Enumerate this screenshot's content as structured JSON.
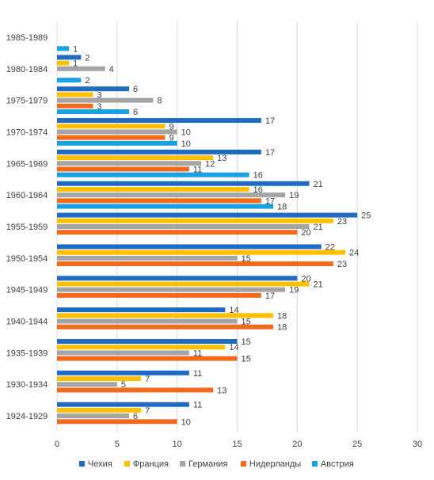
{
  "chart_data": {
    "type": "bar",
    "orientation": "horizontal",
    "categories": [
      "1985-1989",
      "1980-1984",
      "1975-1979",
      "1970-1974",
      "1965-1969",
      "1960-1964",
      "1955-1959",
      "1950-1954",
      "1945-1949",
      "1940-1944",
      "1935-1939",
      "1930-1934",
      "1924-1929"
    ],
    "series": [
      {
        "name": "Чехия",
        "color": "#1f6bc4",
        "values": [
          null,
          2,
          6,
          17,
          17,
          21,
          25,
          22,
          20,
          14,
          15,
          11,
          11
        ]
      },
      {
        "name": "Франция",
        "color": "#ffc000",
        "values": [
          null,
          1,
          3,
          9,
          13,
          16,
          23,
          24,
          21,
          18,
          14,
          7,
          7
        ]
      },
      {
        "name": "Германия",
        "color": "#a5a5a5",
        "values": [
          null,
          4,
          8,
          10,
          12,
          19,
          21,
          15,
          19,
          15,
          11,
          5,
          6
        ]
      },
      {
        "name": "Нидерланды",
        "color": "#f26b1d",
        "values": [
          null,
          null,
          3,
          9,
          11,
          17,
          20,
          23,
          17,
          18,
          15,
          13,
          10
        ]
      },
      {
        "name": "Австрия",
        "color": "#1aa1e0",
        "values": [
          1,
          2,
          6,
          10,
          16,
          18,
          null,
          null,
          null,
          null,
          null,
          null,
          null
        ]
      }
    ],
    "xlim": [
      0,
      30
    ],
    "xticks": [
      0,
      5,
      10,
      15,
      20,
      25,
      30
    ],
    "grid": true,
    "legend_position": "bottom",
    "title": "",
    "xlabel": "",
    "ylabel": ""
  }
}
